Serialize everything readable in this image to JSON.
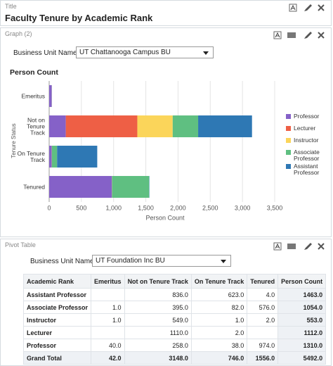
{
  "title_panel": {
    "label": "Title",
    "title": "Faculty Tenure by Academic Rank"
  },
  "graph_panel": {
    "label": "Graph (2)",
    "filter_label": "Business Unit Name",
    "filter_value": "UT Chattanooga Campus BU"
  },
  "chart_data": {
    "type": "bar",
    "orientation": "horizontal",
    "stacked": true,
    "title": "Person Count",
    "x_label": "Person Count",
    "y_label": "Tenure Status",
    "categories": [
      "Emeritus",
      "Not on Tenure Track",
      "On Tenure Track",
      "Tenured"
    ],
    "series": [
      {
        "name": "Professor",
        "color": "#8561c8",
        "values": [
          40,
          258,
          38,
          974
        ]
      },
      {
        "name": "Lecturer",
        "color": "#ee5f45",
        "values": [
          null,
          1110,
          2,
          null
        ]
      },
      {
        "name": "Instructor",
        "color": "#fbd55a",
        "values": [
          1,
          549,
          1,
          2
        ]
      },
      {
        "name": "Associate Professor",
        "color": "#5fbf81",
        "values": [
          1,
          395,
          82,
          576
        ]
      },
      {
        "name": "Assistant Professor",
        "color": "#2e78b4",
        "values": [
          null,
          836,
          623,
          4
        ]
      }
    ],
    "xlim": [
      0,
      3500
    ],
    "xticks": [
      0,
      500,
      {
        "value": 1000,
        "label": "1,000"
      },
      {
        "value": 1500,
        "label": "1,500"
      },
      {
        "value": 2000,
        "label": "2,000"
      },
      {
        "value": 2500,
        "label": "2,500"
      },
      {
        "value": 3000,
        "label": "3,000"
      },
      {
        "value": 3500,
        "label": "3,500"
      }
    ],
    "grid": true,
    "legend": "right"
  },
  "pivot_panel": {
    "label": "Pivot Table",
    "filter_label": "Business Unit Name",
    "filter_value": "UT Foundation Inc BU",
    "table": {
      "columns": [
        "Academic Rank",
        "Emeritus",
        "Not on Tenure Track",
        "On Tenure Track",
        "Tenured",
        "Person Count"
      ],
      "rows": [
        [
          "Assistant Professor",
          null,
          "836.0",
          "623.0",
          "4.0",
          "1463.0"
        ],
        [
          "Associate Professor",
          "1.0",
          "395.0",
          "82.0",
          "576.0",
          "1054.0"
        ],
        [
          "Instructor",
          "1.0",
          "549.0",
          "1.0",
          "2.0",
          "553.0"
        ],
        [
          "Lecturer",
          null,
          "1110.0",
          "2.0",
          null,
          "1112.0"
        ],
        [
          "Professor",
          "40.0",
          "258.0",
          "38.0",
          "974.0",
          "1310.0"
        ],
        [
          "Grand Total",
          "42.0",
          "3148.0",
          "746.0",
          "1556.0",
          "5492.0"
        ]
      ]
    }
  }
}
